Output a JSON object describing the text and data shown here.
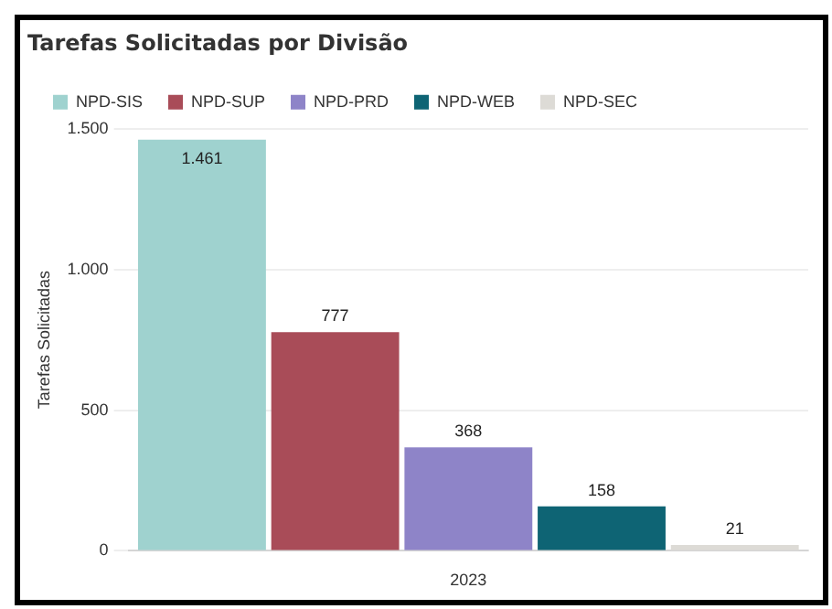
{
  "chart_data": {
    "type": "bar",
    "title": "Tarefas Solicitadas por Divisão",
    "ylabel": "Tarefas Solicitadas",
    "categories": [
      "2023"
    ],
    "series": [
      {
        "name": "NPD-SIS",
        "color": "#9fd2cf",
        "values": [
          1461
        ],
        "value_labels": [
          "1.461"
        ]
      },
      {
        "name": "NPD-SUP",
        "color": "#a94c58",
        "values": [
          777
        ],
        "value_labels": [
          "777"
        ]
      },
      {
        "name": "NPD-PRD",
        "color": "#8e84c8",
        "values": [
          368
        ],
        "value_labels": [
          "368"
        ]
      },
      {
        "name": "NPD-WEB",
        "color": "#0e6474",
        "values": [
          158
        ],
        "value_labels": [
          "158"
        ]
      },
      {
        "name": "NPD-SEC",
        "color": "#dddbd6",
        "values": [
          21
        ],
        "value_labels": [
          "21"
        ]
      }
    ],
    "ylim": [
      0,
      1500
    ],
    "yticks": [
      0,
      500,
      {
        "value": 1000,
        "label": "1.000"
      },
      {
        "value": 1500,
        "label": "1.500"
      }
    ],
    "grid": "y",
    "legend": "top"
  }
}
